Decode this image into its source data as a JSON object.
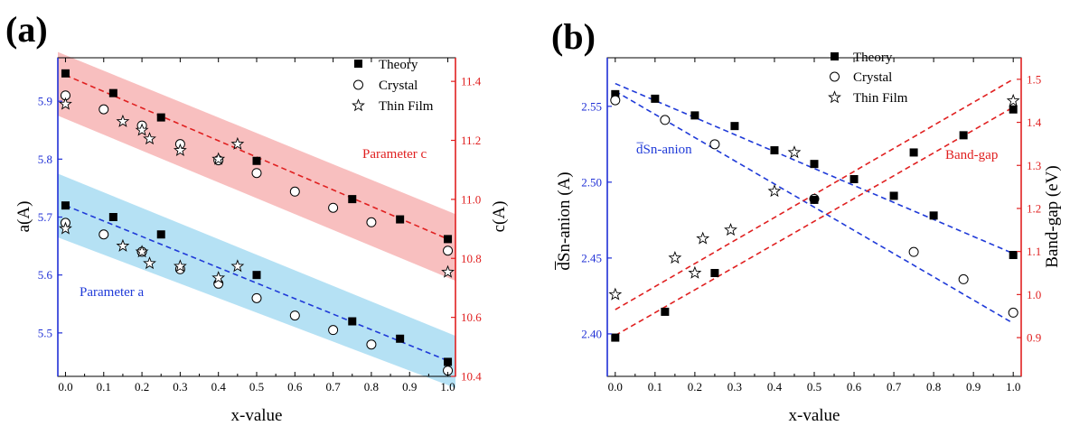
{
  "colors": {
    "left_axis": "#1f2fd6",
    "right_axis": "#e02020",
    "blue": "#1f3ad8",
    "red": "#e02020",
    "blue_band": "#a8dcf2",
    "red_band": "#f7b4b4",
    "black": "#000000"
  },
  "chart_data": [
    {
      "type": "scatter",
      "label": "(a)",
      "xlabel": "x-value",
      "ylabel_left": "a(A)",
      "ylabel_right": "c(A)",
      "xlim": [
        -0.02,
        1.02
      ],
      "ylim_left": [
        5.425,
        5.975
      ],
      "ylim_right": [
        10.4,
        11.48
      ],
      "x_ticks": [
        0.0,
        0.1,
        0.2,
        0.3,
        0.4,
        0.5,
        0.6,
        0.7,
        0.8,
        0.9,
        1.0
      ],
      "x_tick_labels": [
        "0.0",
        "0.1",
        "0.2",
        "0.3",
        "0.4",
        "0.5",
        "0.6",
        "0.7",
        "0.8",
        "0.9",
        "1.0"
      ],
      "y_left_ticks": [
        5.5,
        5.6,
        5.7,
        5.8,
        5.9
      ],
      "y_left_tick_labels": [
        "5.5",
        "5.6",
        "5.7",
        "5.8",
        "5.9"
      ],
      "y_right_ticks": [
        10.4,
        10.6,
        10.8,
        11.0,
        11.2,
        11.4
      ],
      "y_right_tick_labels": [
        "10.4",
        "10.6",
        "10.8",
        "11.0",
        "11.2",
        "11.4"
      ],
      "legend": {
        "position": "top-right",
        "entries": [
          "Theory",
          "Crystal",
          "Thin Film"
        ]
      },
      "annotations": [
        "Parameter c",
        "Parameter a"
      ],
      "series": [
        {
          "name": "Theory",
          "marker": "square",
          "axis": "left",
          "x": [
            0.0,
            0.125,
            0.25,
            0.5,
            0.75,
            0.875,
            1.0
          ],
          "y": [
            5.72,
            5.7,
            5.67,
            5.6,
            5.52,
            5.49,
            5.45
          ]
        },
        {
          "name": "Theory",
          "marker": "square",
          "axis": "left",
          "x": [
            0.0,
            0.125,
            0.25,
            0.5,
            0.75,
            0.875,
            1.0
          ],
          "y": [
            5.948,
            5.914,
            5.872,
            5.797,
            5.731,
            5.696,
            5.662
          ]
        },
        {
          "name": "Crystal",
          "marker": "circle",
          "axis": "left",
          "x": [
            0.0,
            0.1,
            0.2,
            0.3,
            0.4,
            0.5,
            0.6,
            0.7,
            0.8,
            1.0
          ],
          "y": [
            5.69,
            5.67,
            5.64,
            5.61,
            5.585,
            5.56,
            5.53,
            5.505,
            5.48,
            5.435
          ]
        },
        {
          "name": "Crystal",
          "marker": "circle",
          "axis": "left",
          "x": [
            0.0,
            0.1,
            0.2,
            0.3,
            0.4,
            0.5,
            0.6,
            0.7,
            0.8,
            1.0
          ],
          "y": [
            5.91,
            5.886,
            5.858,
            5.826,
            5.798,
            5.776,
            5.744,
            5.716,
            5.691,
            5.642
          ]
        },
        {
          "name": "Thin Film",
          "marker": "star",
          "axis": "left",
          "x": [
            0.0,
            0.15,
            0.2,
            0.22,
            0.3,
            0.4,
            0.45,
            1.0
          ],
          "y": [
            5.68,
            5.65,
            5.64,
            5.62,
            5.615,
            5.595,
            5.615,
            5.605
          ]
        },
        {
          "name": "Thin Film",
          "marker": "star",
          "axis": "left",
          "x": [
            0.0,
            0.15,
            0.2,
            0.22,
            0.3,
            0.4,
            0.45
          ],
          "y": [
            5.895,
            5.865,
            5.85,
            5.835,
            5.815,
            5.8,
            5.826
          ]
        }
      ],
      "fit_lines": [
        {
          "axis": "left",
          "color": "blue",
          "x": [
            0.0,
            1.0
          ],
          "y": [
            5.72,
            5.452
          ]
        },
        {
          "axis": "left",
          "color": "red",
          "x": [
            0.0,
            1.0
          ],
          "y": [
            5.945,
            5.662
          ]
        }
      ],
      "bands": [
        {
          "color": "blue_band",
          "axis": "left",
          "x": [
            -0.02,
            1.02
          ],
          "y_top": [
            5.775,
            5.495
          ],
          "y_bottom": [
            5.665,
            5.405
          ]
        },
        {
          "color": "red_band",
          "axis": "left",
          "x": [
            -0.02,
            1.02
          ],
          "y_top": [
            5.985,
            5.705
          ],
          "y_bottom": [
            5.875,
            5.59
          ]
        }
      ]
    },
    {
      "type": "scatter",
      "label": "(b)",
      "xlabel": "x-value",
      "ylabel_left": "d̅Sn-anion (A)",
      "ylabel_right": "Band-gap (eV)",
      "xlim": [
        -0.02,
        1.02
      ],
      "ylim_left": [
        2.372,
        2.582
      ],
      "ylim_right": [
        0.81,
        1.55
      ],
      "x_ticks": [
        0.0,
        0.1,
        0.2,
        0.3,
        0.4,
        0.5,
        0.6,
        0.7,
        0.8,
        0.9,
        1.0
      ],
      "x_tick_labels": [
        "0.0",
        "0.1",
        "0.2",
        "0.3",
        "0.4",
        "0.5",
        "0.6",
        "0.7",
        "0.8",
        "0.9",
        "1.0"
      ],
      "y_left_ticks": [
        2.4,
        2.45,
        2.5,
        2.55
      ],
      "y_left_tick_labels": [
        "2.40",
        "2.45",
        "2.50",
        "2.55"
      ],
      "y_right_ticks": [
        0.9,
        1.0,
        1.1,
        1.2,
        1.3,
        1.4,
        1.5
      ],
      "y_right_tick_labels": [
        "0.9",
        "1.0",
        "1.1",
        "1.2",
        "1.3",
        "1.4",
        "1.5"
      ],
      "legend": {
        "position": "top-center",
        "entries": [
          "Theory",
          "Crystal",
          "Thin Film"
        ]
      },
      "annotations": [
        "d̅Sn-anion",
        "Band-gap"
      ],
      "series": [
        {
          "name": "Theory",
          "marker": "square",
          "axis": "left",
          "x": [
            0.0,
            0.1,
            0.2,
            0.3,
            0.4,
            0.5,
            0.6,
            0.7,
            0.8,
            1.0
          ],
          "y": [
            2.558,
            2.555,
            2.544,
            2.537,
            2.521,
            2.512,
            2.502,
            2.491,
            2.478,
            2.452
          ]
        },
        {
          "name": "Crystal",
          "marker": "circle",
          "axis": "left",
          "x": [
            0.0,
            0.125,
            0.25,
            0.5,
            0.75,
            0.875,
            1.0
          ],
          "y": [
            2.554,
            2.541,
            2.525,
            2.489,
            2.454,
            2.436,
            2.414
          ]
        },
        {
          "name": "Theory",
          "marker": "square",
          "axis": "right",
          "x": [
            0.0,
            0.125,
            0.25,
            0.5,
            0.75,
            0.875,
            1.0
          ],
          "y": [
            0.9,
            0.96,
            1.05,
            1.22,
            1.33,
            1.37,
            1.43
          ]
        },
        {
          "name": "Thin Film",
          "marker": "star",
          "axis": "right",
          "x": [
            0.0,
            0.15,
            0.2,
            0.22,
            0.29,
            0.4,
            0.45,
            1.0
          ],
          "y": [
            1.0,
            1.085,
            1.05,
            1.13,
            1.15,
            1.24,
            1.33,
            1.45
          ]
        }
      ],
      "fit_lines": [
        {
          "axis": "left",
          "color": "blue",
          "x": [
            0.0,
            1.0
          ],
          "y": [
            2.565,
            2.453
          ]
        },
        {
          "axis": "left",
          "color": "blue",
          "x": [
            0.0,
            1.0
          ],
          "y": [
            2.56,
            2.407
          ]
        },
        {
          "axis": "right",
          "color": "red",
          "x": [
            0.0,
            1.0
          ],
          "y": [
            0.905,
            1.435
          ]
        },
        {
          "axis": "right",
          "color": "red",
          "x": [
            0.0,
            1.0
          ],
          "y": [
            0.965,
            1.5
          ]
        }
      ]
    }
  ]
}
